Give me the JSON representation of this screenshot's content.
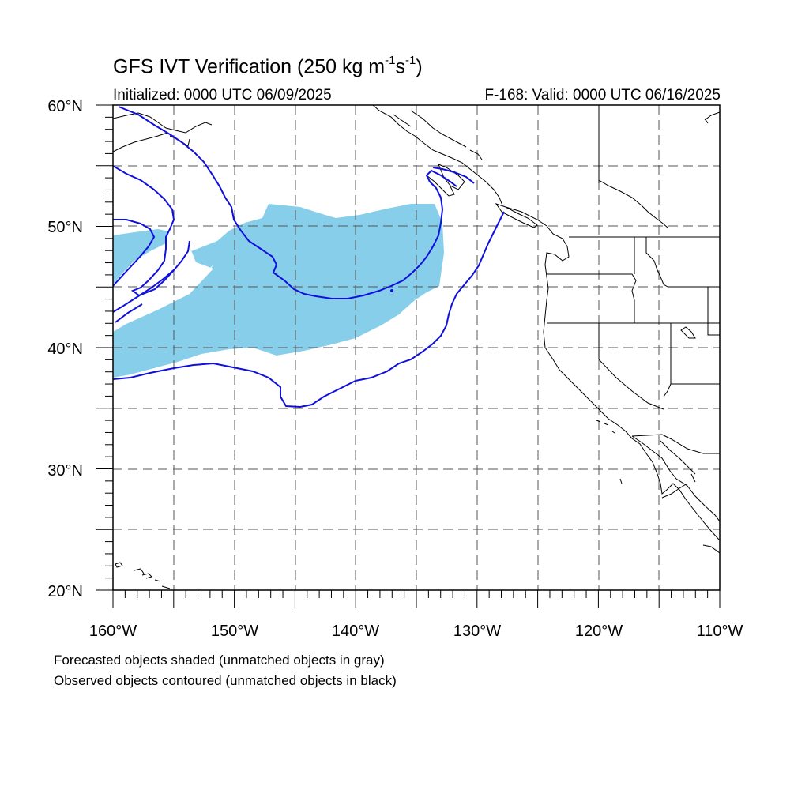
{
  "title": {
    "prefix": "GFS IVT Verification (250 kg m",
    "sup1": "-1",
    "mid": "s",
    "sup2": "-1",
    "suffix": ")"
  },
  "subtitle_left": "Initialized: 0000 UTC 06/09/2025",
  "subtitle_right": "F-168: Valid: 0000 UTC 06/16/2025",
  "lat_labels": [
    "60°N",
    "50°N",
    "40°N",
    "30°N",
    "20°N"
  ],
  "lon_labels": [
    "160°W",
    "150°W",
    "140°W",
    "130°W",
    "120°W",
    "110°W"
  ],
  "legend": {
    "line1": "Forecasted objects shaded (unmatched objects in gray)",
    "line2": "Observed objects contoured (unmatched objects in black)"
  },
  "colors": {
    "forecast_fill": "#87ceeb",
    "observed_contour": "#1010dd",
    "coastline": "#000000",
    "grid": "#555555"
  },
  "map_extent": {
    "lon": [
      -160,
      -110
    ],
    "lat": [
      20,
      60
    ]
  }
}
